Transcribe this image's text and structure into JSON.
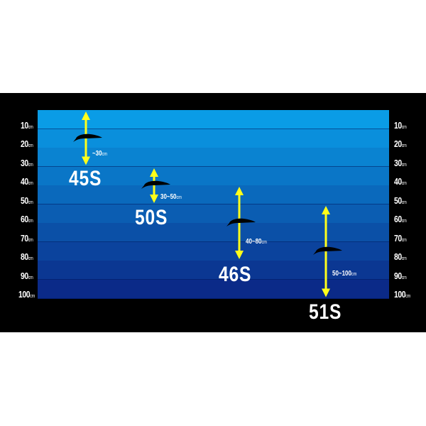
{
  "depth_scale": {
    "unit": "cm",
    "ticks": [
      "10",
      "20",
      "30",
      "40",
      "50",
      "60",
      "70",
      "80",
      "90",
      "100"
    ]
  },
  "colors": {
    "water_top": "#0a9ce6",
    "water_bottom": "#0b2a88",
    "arrow": "#ffff1a",
    "background": "#000000"
  },
  "lures": [
    {
      "model": "45S",
      "range_text": "~30",
      "min_depth": 0,
      "max_depth": 30,
      "swim_depth": 15
    },
    {
      "model": "50S",
      "range_text": "30~50",
      "min_depth": 30,
      "max_depth": 50,
      "swim_depth": 40
    },
    {
      "model": "46S",
      "range_text": "40~80",
      "min_depth": 40,
      "max_depth": 80,
      "swim_depth": 60
    },
    {
      "model": "51S",
      "range_text": "50~100",
      "min_depth": 50,
      "max_depth": 100,
      "swim_depth": 75
    }
  ]
}
